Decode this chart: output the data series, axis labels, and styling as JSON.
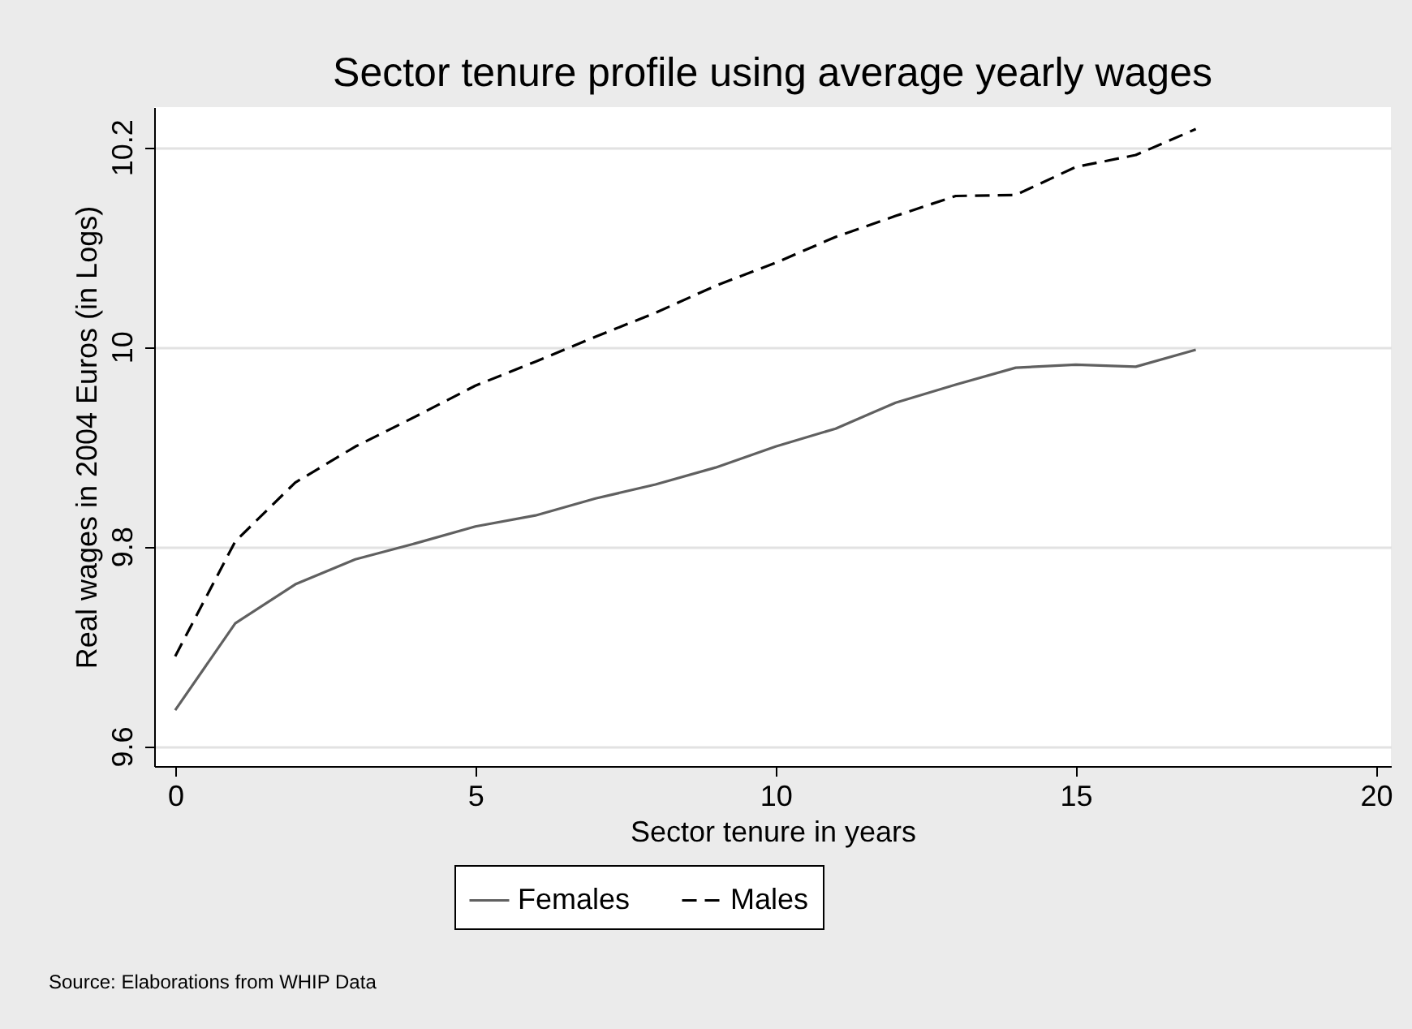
{
  "chart_data": {
    "type": "line",
    "title": "Sector tenure profile using average yearly wages",
    "xlabel": "Sector tenure in years",
    "ylabel": "Real wages in 2004 Euros (in Logs)",
    "x": [
      0,
      1,
      2,
      3,
      4,
      5,
      6,
      7,
      8,
      9,
      10,
      11,
      12,
      13,
      14,
      15,
      16,
      17
    ],
    "series": [
      {
        "name": "Females",
        "color": "#606060",
        "line_style": "solid",
        "values": [
          9.636,
          9.723,
          9.762,
          9.787,
          9.803,
          9.82,
          9.831,
          9.848,
          9.862,
          9.879,
          9.9,
          9.918,
          9.944,
          9.962,
          9.979,
          9.982,
          9.98,
          9.997
        ]
      },
      {
        "name": "Males",
        "color": "#000000",
        "line_style": "dashed",
        "values": [
          9.69,
          9.805,
          9.864,
          9.9,
          9.93,
          9.961,
          9.985,
          10.01,
          10.034,
          10.061,
          10.084,
          10.11,
          10.131,
          10.151,
          10.152,
          10.18,
          10.192,
          10.218
        ]
      }
    ],
    "xlim": [
      -0.35,
      20.25
    ],
    "xticks": [
      0,
      5,
      10,
      15,
      20
    ],
    "ylim": [
      9.58,
      10.24
    ],
    "yticks": [
      9.6,
      9.8,
      10,
      10.2
    ],
    "grid": "y",
    "legend": "bottom",
    "annotations": [
      "Source: Elaborations from WHIP Data"
    ]
  }
}
